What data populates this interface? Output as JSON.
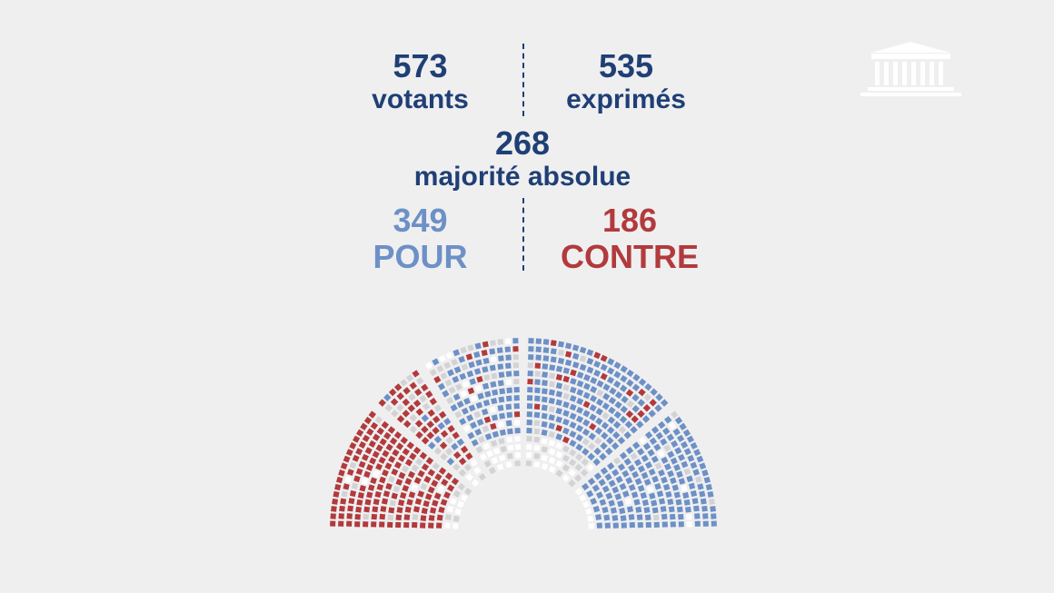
{
  "votants": {
    "number": "573",
    "label": "votants"
  },
  "exprimes": {
    "number": "535",
    "label": "exprimés"
  },
  "majorite": {
    "number": "268",
    "label": "majorité absolue"
  },
  "pour": {
    "number": "349",
    "label": "POUR"
  },
  "contre": {
    "number": "186",
    "label": "CONTRE"
  },
  "colors": {
    "text_primary": "#1f3f75",
    "pour": "#6d90c6",
    "contre": "#b23a3c",
    "abstention": "#d3d3d5",
    "absent": "#ffffff",
    "background": "#efeff0"
  },
  "logo_icon": "assemblee-nationale-building-icon",
  "hemicycle": {
    "segments": [
      {
        "value": "contre",
        "fraction": 0.22
      },
      {
        "value": "mixed",
        "fraction": 0.1
      },
      {
        "value": "pour",
        "fraction": 0.48
      },
      {
        "value": "pour",
        "fraction": 0.2
      }
    ]
  }
}
